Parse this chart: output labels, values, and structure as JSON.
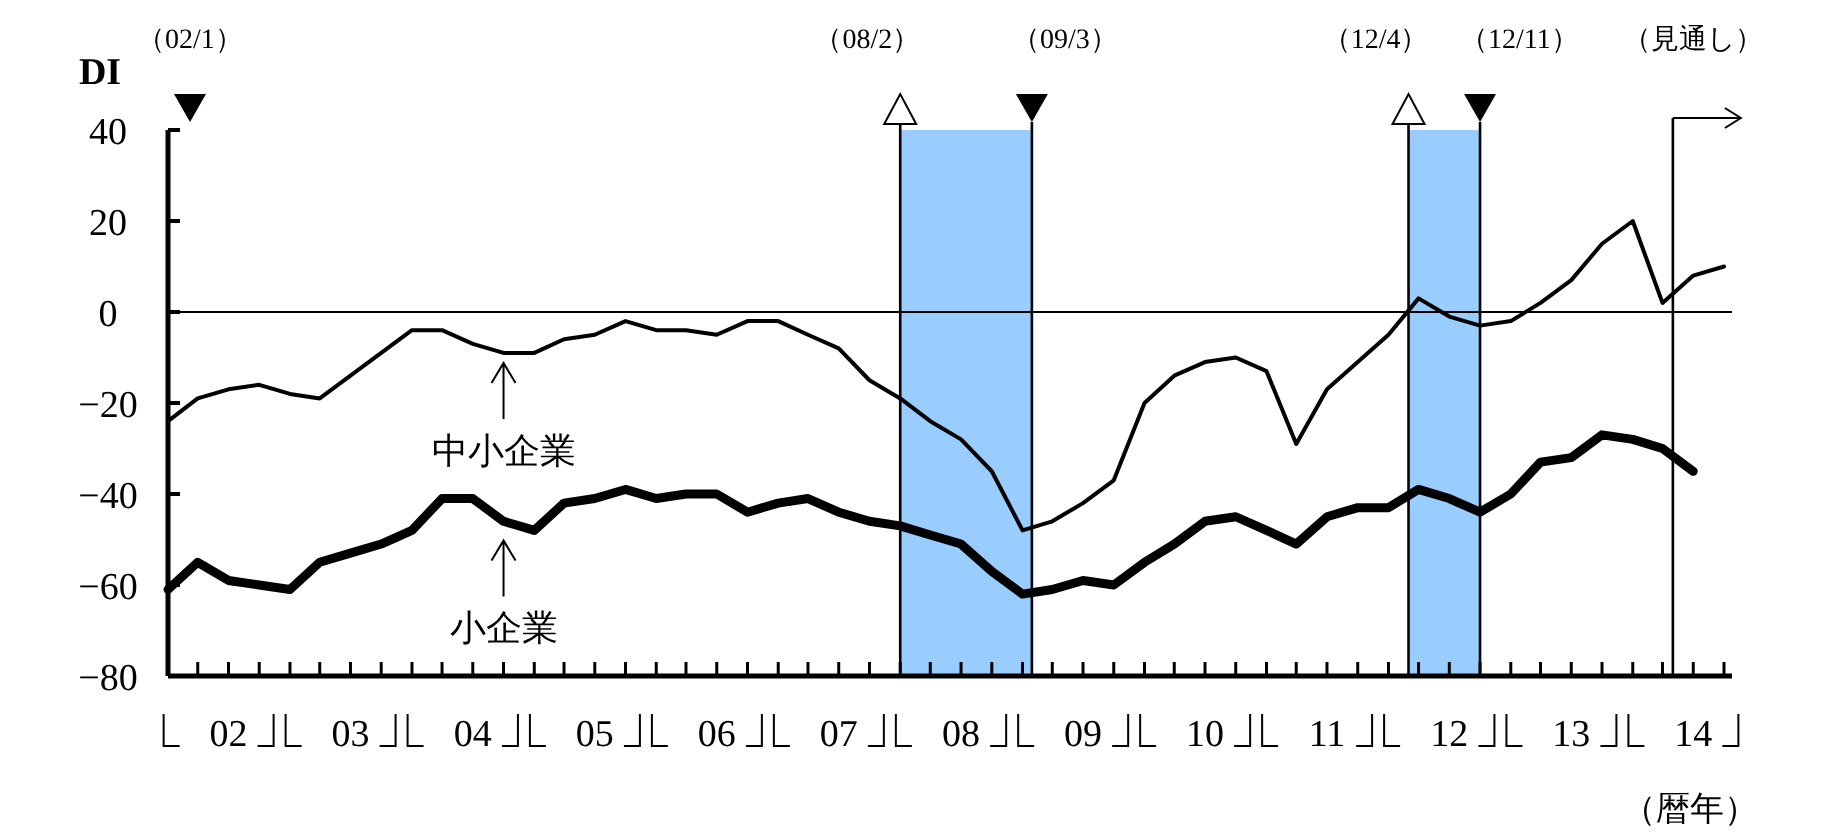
{
  "chart_data": {
    "type": "line",
    "ylabel": "DI",
    "xlabel": "（暦年）",
    "x": [
      "2002-02-01",
      "2002-05-01",
      "2002-08-01",
      "2002-11-01",
      "2003-02-01",
      "2003-05-01",
      "2003-08-01",
      "2003-11-01",
      "2004-02-01",
      "2004-05-01",
      "2004-08-01",
      "2004-11-01",
      "2005-02-01",
      "2005-05-01",
      "2005-08-01",
      "2005-11-01",
      "2006-02-01",
      "2006-05-01",
      "2006-08-01",
      "2006-11-01",
      "2007-02-01",
      "2007-05-01",
      "2007-08-01",
      "2007-11-01",
      "2008-02-01",
      "2008-05-01",
      "2008-08-01",
      "2008-11-01",
      "2009-02-01",
      "2009-05-01",
      "2009-08-01",
      "2009-11-01",
      "2010-02-01",
      "2010-05-01",
      "2010-08-01",
      "2010-11-01",
      "2011-02-01",
      "2011-05-01",
      "2011-08-01",
      "2011-11-01",
      "2012-02-01",
      "2012-05-01",
      "2012-08-01",
      "2012-11-01",
      "2013-02-01",
      "2013-05-01",
      "2013-08-01",
      "2013-11-01",
      "2014-02-01",
      "2014-05-01",
      "2014-08-01",
      "2014-11-01"
    ],
    "series": [
      {
        "color": "#000000",
        "values": [
          -24,
          -19,
          -17,
          -16,
          -18,
          -19,
          -14,
          -9,
          -4,
          -4,
          -7,
          -9,
          -9,
          -6,
          -5,
          -2,
          -4,
          -4,
          -5,
          -2,
          -2,
          -5,
          -8,
          -15,
          -19,
          -24,
          -28,
          -35,
          -48,
          -46,
          -42,
          -37,
          -20,
          -14,
          -11,
          -10,
          -13,
          -29,
          -17,
          -11,
          -5,
          3,
          -1,
          -3,
          -2,
          2,
          7,
          15,
          20,
          2,
          8,
          10
        ]
      },
      {
        "color": "#000000",
        "values": [
          -61,
          -55,
          -59,
          -60,
          -61,
          -55,
          -53,
          -51,
          -48,
          -41,
          -41,
          -46,
          -48,
          -42,
          -41,
          -39,
          -41,
          -40,
          -40,
          -44,
          -42,
          -41,
          -44,
          -46,
          -47,
          -49,
          -51,
          -57,
          -62,
          -61,
          -59,
          -60,
          -55,
          -51,
          -46,
          -45,
          -48,
          -51,
          -45,
          -43,
          -43,
          -39,
          -41,
          -44,
          -40,
          -33,
          -32,
          -27,
          -28,
          -30,
          -35,
          null
        ]
      }
    ],
    "xlim": [
      "2002-02-01",
      "2014-11-01"
    ],
    "ylim": [
      -80,
      40
    ],
    "yticks": [
      -80,
      -60,
      -40,
      -20,
      0,
      20,
      40
    ],
    "xticks": [
      {
        "value": "2002-08-01",
        "label": "02"
      },
      {
        "value": "2003-08-01",
        "label": "03"
      },
      {
        "value": "2004-08-01",
        "label": "04"
      },
      {
        "value": "2005-08-01",
        "label": "05"
      },
      {
        "value": "2006-08-01",
        "label": "06"
      },
      {
        "value": "2007-08-01",
        "label": "07"
      },
      {
        "value": "2008-08-01",
        "label": "08"
      },
      {
        "value": "2009-08-01",
        "label": "09"
      },
      {
        "value": "2010-08-01",
        "label": "10"
      },
      {
        "value": "2011-08-01",
        "label": "11"
      },
      {
        "value": "2012-08-01",
        "label": "12"
      },
      {
        "value": "2013-08-01",
        "label": "13"
      },
      {
        "value": "2014-08-01",
        "label": "14"
      }
    ],
    "bands": [
      {
        "axis": "x",
        "from": "2008-02-01",
        "to": "2009-03-01",
        "color": "#99ccff"
      },
      {
        "axis": "x",
        "from": "2012-04-01",
        "to": "2012-11-01",
        "color": "#99ccff"
      }
    ],
    "ref_lines": [
      {
        "axis": "y",
        "value": 0,
        "color": "#000000"
      },
      {
        "axis": "x",
        "value": "2008-02-01",
        "label": "（08/2）"
      },
      {
        "axis": "x",
        "value": "2009-03-01",
        "label": "（09/3）"
      },
      {
        "axis": "x",
        "value": "2012-04-01",
        "label": "（12/4）"
      },
      {
        "axis": "x",
        "value": "2012-11-01",
        "label": "（12/11）"
      },
      {
        "axis": "x",
        "value": "2014-06-01",
        "label": "（見通し）"
      }
    ],
    "annotations": [
      "（02/1）",
      {
        "text": "中小企業",
        "x": "2004-11-01",
        "y": -9
      },
      {
        "text": "小企業",
        "x": "2004-11-01",
        "y": -48
      }
    ],
    "marker": "none",
    "line_style": "solid"
  }
}
